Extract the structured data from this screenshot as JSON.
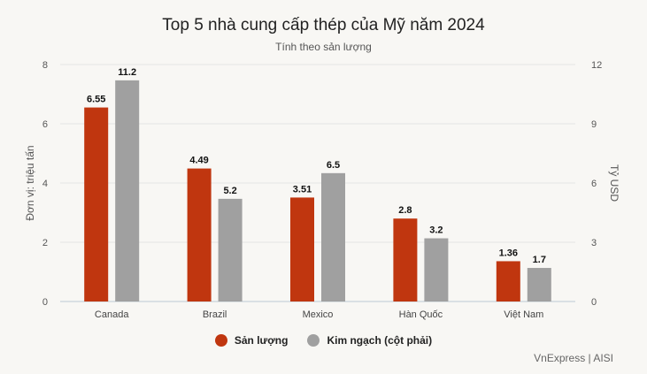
{
  "header": {
    "title": "Top 5 nhà cung cấp thép của Mỹ năm 2024",
    "subtitle": "Tính theo sản lượng"
  },
  "source": "VnExpress | AISI",
  "colors": {
    "primary": "#c0360f",
    "secondary": "#a0a0a0"
  },
  "chart_data": {
    "type": "bar",
    "categories": [
      "Canada",
      "Brazil",
      "Mexico",
      "Hàn Quốc",
      "Việt Nam"
    ],
    "series": [
      {
        "name": "Sản lượng",
        "axis": "left",
        "color": "#c0360f",
        "values": [
          6.55,
          4.49,
          3.51,
          2.8,
          1.36
        ]
      },
      {
        "name": "Kim ngạch (cột phải)",
        "axis": "right",
        "color": "#a0a0a0",
        "values": [
          11.2,
          5.2,
          6.5,
          3.2,
          1.7
        ]
      }
    ],
    "ylabel": "Đơn vị: triệu tấn",
    "ylabel_right": "Tỷ USD",
    "ylim": [
      0,
      8
    ],
    "ylim_right": [
      0,
      12
    ],
    "yticks": [
      0,
      2,
      4,
      6,
      8
    ],
    "yticks_right": [
      0,
      3,
      6,
      9,
      12
    ],
    "grid": true,
    "legend_position": "bottom"
  }
}
